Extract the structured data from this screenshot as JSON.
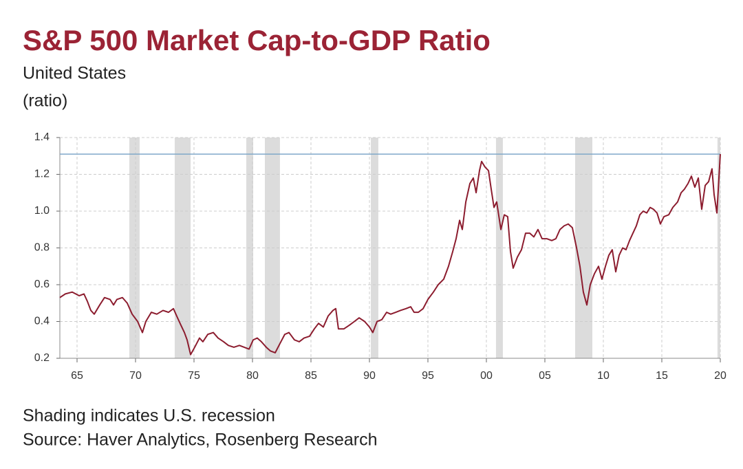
{
  "chart_data": {
    "type": "line",
    "title": "S&P 500 Market Cap-to-GDP Ratio",
    "subtitle": "United States",
    "y_label": "(ratio)",
    "notes": [
      "Shading indicates U.S. recession",
      "Source: Haver Analytics, Rosenberg Research"
    ],
    "color": "#8c1c2e",
    "x": [
      1963.53,
      1964.0,
      1964.59,
      1965.18,
      1965.59,
      1965.88,
      1966.18,
      1966.47,
      1966.94,
      1967.35,
      1967.82,
      1968.12,
      1968.41,
      1968.88,
      1969.29,
      1969.71,
      1970.18,
      1970.59,
      1970.88,
      1971.35,
      1971.82,
      1972.35,
      1972.82,
      1973.24,
      1973.59,
      1973.88,
      1974.18,
      1974.41,
      1974.71,
      1975.06,
      1975.47,
      1975.76,
      1976.18,
      1976.65,
      1977.06,
      1977.53,
      1977.94,
      1978.41,
      1978.88,
      1979.29,
      1979.71,
      1980.06,
      1980.41,
      1980.76,
      1981.18,
      1981.53,
      1981.94,
      1982.35,
      1982.76,
      1983.12,
      1983.59,
      1984.0,
      1984.41,
      1984.88,
      1985.29,
      1985.65,
      1986.06,
      1986.47,
      1986.88,
      1987.12,
      1987.35,
      1987.82,
      1988.29,
      1988.71,
      1989.12,
      1989.59,
      1990.0,
      1990.29,
      1990.65,
      1991.06,
      1991.47,
      1991.82,
      1992.24,
      1992.65,
      1993.12,
      1993.53,
      1993.82,
      1994.18,
      1994.59,
      1995.0,
      1995.47,
      1995.88,
      1996.35,
      1996.76,
      1997.12,
      1997.41,
      1997.71,
      1997.94,
      1998.24,
      1998.59,
      1998.88,
      1999.12,
      1999.41,
      1999.59,
      1999.88,
      2000.18,
      2000.41,
      2000.65,
      2000.88,
      2001.24,
      2001.53,
      2001.82,
      2002.06,
      2002.29,
      2002.65,
      2003.0,
      2003.35,
      2003.71,
      2004.06,
      2004.41,
      2004.76,
      2005.18,
      2005.59,
      2005.94,
      2006.29,
      2006.65,
      2007.0,
      2007.35,
      2007.71,
      2008.0,
      2008.29,
      2008.59,
      2008.88,
      2009.24,
      2009.59,
      2009.88,
      2010.18,
      2010.47,
      2010.76,
      2011.06,
      2011.35,
      2011.65,
      2011.94,
      2012.24,
      2012.53,
      2012.82,
      2013.12,
      2013.41,
      2013.71,
      2014.0,
      2014.29,
      2014.59,
      2014.88,
      2015.18,
      2015.59,
      2015.94,
      2016.35,
      2016.65,
      2016.94,
      2017.24,
      2017.53,
      2017.82,
      2018.12,
      2018.41,
      2018.71,
      2019.0,
      2019.29,
      2019.47,
      2019.71,
      2020.0
    ],
    "values": [
      0.53,
      0.55,
      0.56,
      0.54,
      0.55,
      0.51,
      0.46,
      0.44,
      0.49,
      0.53,
      0.52,
      0.49,
      0.52,
      0.53,
      0.5,
      0.44,
      0.4,
      0.34,
      0.4,
      0.45,
      0.44,
      0.46,
      0.45,
      0.47,
      0.42,
      0.38,
      0.34,
      0.3,
      0.22,
      0.26,
      0.31,
      0.29,
      0.33,
      0.34,
      0.31,
      0.29,
      0.27,
      0.26,
      0.27,
      0.26,
      0.25,
      0.3,
      0.31,
      0.29,
      0.26,
      0.24,
      0.23,
      0.28,
      0.33,
      0.34,
      0.3,
      0.29,
      0.31,
      0.32,
      0.36,
      0.39,
      0.37,
      0.43,
      0.46,
      0.47,
      0.36,
      0.36,
      0.38,
      0.4,
      0.42,
      0.4,
      0.37,
      0.34,
      0.4,
      0.41,
      0.45,
      0.44,
      0.45,
      0.46,
      0.47,
      0.48,
      0.45,
      0.45,
      0.47,
      0.52,
      0.56,
      0.6,
      0.63,
      0.7,
      0.78,
      0.85,
      0.95,
      0.9,
      1.05,
      1.15,
      1.18,
      1.1,
      1.22,
      1.27,
      1.24,
      1.22,
      1.12,
      1.02,
      1.05,
      0.9,
      0.98,
      0.97,
      0.78,
      0.69,
      0.75,
      0.79,
      0.88,
      0.88,
      0.86,
      0.9,
      0.85,
      0.85,
      0.84,
      0.85,
      0.9,
      0.92,
      0.93,
      0.91,
      0.8,
      0.7,
      0.56,
      0.49,
      0.6,
      0.66,
      0.7,
      0.63,
      0.7,
      0.76,
      0.79,
      0.67,
      0.76,
      0.8,
      0.79,
      0.84,
      0.88,
      0.92,
      0.98,
      1.0,
      0.99,
      1.02,
      1.01,
      0.99,
      0.93,
      0.97,
      0.98,
      1.02,
      1.05,
      1.1,
      1.12,
      1.15,
      1.19,
      1.13,
      1.18,
      1.01,
      1.14,
      1.16,
      1.23,
      1.09,
      0.99,
      1.31
    ],
    "recessions": [
      [
        1969.47,
        1970.35
      ],
      [
        1973.35,
        1974.71
      ],
      [
        1979.47,
        1980.06
      ],
      [
        1981.06,
        1982.35
      ],
      [
        1990.12,
        1990.76
      ],
      [
        2000.82,
        2001.41
      ],
      [
        2007.59,
        2009.06
      ],
      [
        2019.76,
        2020.0
      ]
    ],
    "reference_line": 1.31,
    "reference_color": "#7fa8c9",
    "recession_color": "#dcdcdc",
    "xlim": [
      1963.53,
      2020.0
    ],
    "ylim": [
      0.2,
      1.4
    ],
    "xticks": [
      {
        "value": 1965,
        "label": "65"
      },
      {
        "value": 1970,
        "label": "70"
      },
      {
        "value": 1975,
        "label": "75"
      },
      {
        "value": 1980,
        "label": "80"
      },
      {
        "value": 1985,
        "label": "85"
      },
      {
        "value": 1990,
        "label": "90"
      },
      {
        "value": 1995,
        "label": "95"
      },
      {
        "value": 2000,
        "label": "00"
      },
      {
        "value": 2005,
        "label": "05"
      },
      {
        "value": 2010,
        "label": "10"
      },
      {
        "value": 2015,
        "label": "15"
      },
      {
        "value": 2020,
        "label": "20"
      }
    ],
    "yticks": [
      0.2,
      0.4,
      0.6,
      0.8,
      {
        "value": 1,
        "label": "1.0"
      },
      1.2,
      1.4
    ],
    "grid": true
  }
}
